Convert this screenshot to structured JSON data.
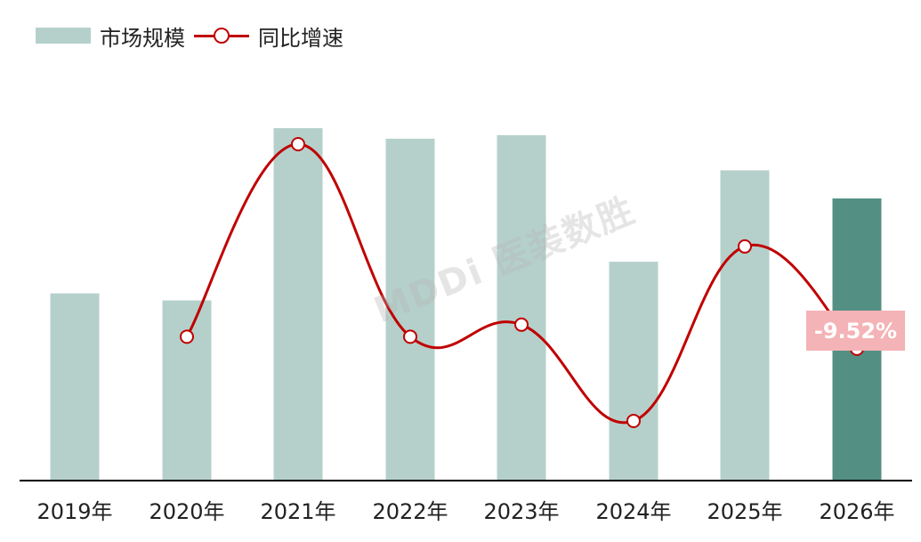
{
  "legend": {
    "bar_label": "市场规模",
    "line_label": "同比增速"
  },
  "watermark": "MDDi 医装数胜",
  "callout": "-9.52%",
  "colors": {
    "bar": "#b5d0cb",
    "bar_highlight": "#548f84",
    "line": "#c00000",
    "callout_bg": "#f4b3b6"
  },
  "chart_data": {
    "type": "bar",
    "categories": [
      "2019年",
      "2020年",
      "2021年",
      "2022年",
      "2023年",
      "2024年",
      "2025年",
      "2026年"
    ],
    "series": [
      {
        "type": "bar",
        "values": [
          53,
          51,
          100,
          97,
          98,
          62,
          88,
          80
        ]
      },
      {
        "type": "line",
        "values": [
          null,
          18,
          50,
          18,
          20,
          4,
          33,
          16
        ]
      }
    ],
    "highlight_index": 7,
    "annotations": [
      {
        "index": 7,
        "text": "-9.52%"
      }
    ],
    "legend_position": "top-left",
    "grid": false
  }
}
